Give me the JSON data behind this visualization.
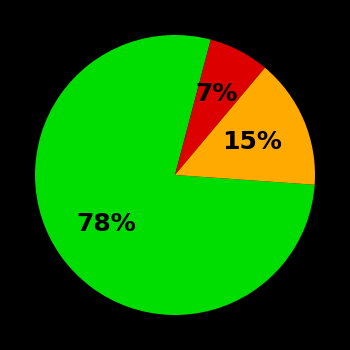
{
  "slices": [
    78,
    7,
    15
  ],
  "colors": [
    "#00dd00",
    "#dd0000",
    "#ffaa00"
  ],
  "labels": [
    "78%",
    "7%",
    "15%"
  ],
  "label_radii": [
    0.6,
    0.65,
    0.6
  ],
  "background_color": "#000000",
  "startangle": -4,
  "figsize": [
    3.5,
    3.5
  ],
  "dpi": 100,
  "label_fontsize": 18
}
